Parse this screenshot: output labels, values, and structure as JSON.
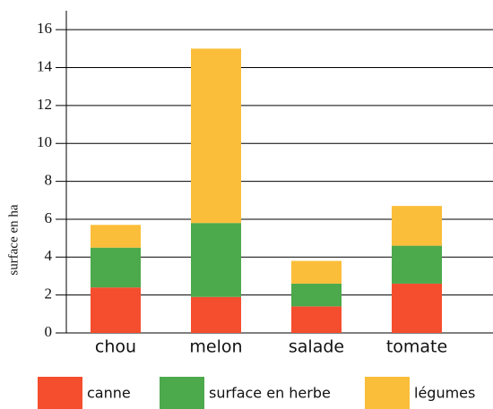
{
  "chart_data": {
    "type": "stacked_bar",
    "ylabel": "surface en ha",
    "categories": [
      "chou",
      "melon",
      "salade",
      "tomate"
    ],
    "series": [
      {
        "name": "canne",
        "color": "#f54e2e",
        "values": [
          2.4,
          1.9,
          1.4,
          2.6
        ]
      },
      {
        "name": "surface en herbe",
        "color": "#4ca94c",
        "values": [
          2.1,
          3.9,
          1.2,
          2.0
        ]
      },
      {
        "name": "légumes",
        "color": "#fbbe3a",
        "values": [
          1.2,
          9.2,
          1.2,
          2.1
        ]
      }
    ],
    "ylim": [
      0,
      17
    ],
    "yticks": [
      0,
      2,
      4,
      6,
      8,
      10,
      12,
      14,
      16
    ],
    "grid": true,
    "legend": "bottom"
  }
}
